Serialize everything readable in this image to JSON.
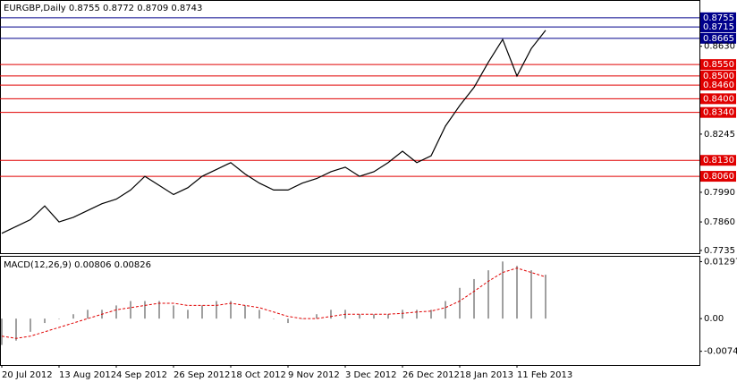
{
  "chart_data": {
    "type": "line",
    "title": "EURGBP,Daily  0.8755 0.8772 0.8709 0.8743",
    "categories": [
      "20 Jul 2012",
      null,
      null,
      null,
      "13 Aug 2012",
      null,
      null,
      null,
      "4 Sep 2012",
      null,
      null,
      null,
      "26 Sep 2012",
      null,
      null,
      null,
      "18 Oct 2012",
      null,
      null,
      null,
      "9 Nov 2012",
      null,
      null,
      null,
      "3 Dec 2012",
      null,
      null,
      null,
      "26 Dec 2012",
      null,
      null,
      null,
      "18 Jan 2013",
      null,
      null,
      null,
      "11 Feb 2013",
      null,
      null
    ],
    "series": [
      {
        "color": "#000000",
        "values": [
          0.781,
          0.784,
          0.787,
          0.793,
          0.786,
          0.788,
          0.791,
          0.794,
          0.796,
          0.8,
          0.806,
          0.802,
          0.798,
          0.801,
          0.806,
          0.809,
          0.812,
          0.807,
          0.803,
          0.8,
          0.8,
          0.803,
          0.805,
          0.808,
          0.81,
          0.806,
          0.808,
          0.812,
          0.817,
          0.812,
          0.815,
          0.828,
          0.837,
          0.845,
          0.856,
          0.866,
          0.85,
          0.862,
          0.87
        ]
      }
    ],
    "ylim": [
      0.7723,
      0.8829
    ],
    "yticks": [
      {
        "value": 0.8755,
        "color": "#00008b"
      },
      {
        "value": 0.8715,
        "color": "#00008b"
      },
      {
        "value": 0.8665,
        "color": "#00008b"
      },
      {
        "value": 0.863,
        "label": "0.8630"
      },
      {
        "value": 0.855,
        "label": "0.8550",
        "color": "#e00000"
      },
      {
        "value": 0.85,
        "label": "0.8500",
        "color": "#e00000"
      },
      {
        "value": 0.846,
        "label": "0.8460",
        "color": "#e00000"
      },
      {
        "value": 0.84,
        "label": "0.8400",
        "color": "#e00000"
      },
      {
        "value": 0.834,
        "label": "0.8340",
        "color": "#e00000"
      },
      0.8245,
      {
        "value": 0.813,
        "label": "0.8130",
        "color": "#e00000"
      },
      {
        "value": 0.806,
        "label": "0.8060",
        "color": "#e00000"
      },
      {
        "value": 0.799,
        "label": "0.7990"
      },
      {
        "value": 0.786,
        "label": "0.7860"
      },
      0.7735
    ],
    "macd": {
      "title": "MACD(12,26,9) 0.00806 0.00826",
      "histogram": {
        "color": "#a0a0a0",
        "values": [
          -0.006,
          -0.005,
          -0.003,
          -0.001,
          0.0,
          0.001,
          0.002,
          0.002,
          0.003,
          0.004,
          0.004,
          0.004,
          0.003,
          0.002,
          0.003,
          0.004,
          0.004,
          0.003,
          0.002,
          0.0,
          -0.001,
          0.0,
          0.001,
          0.002,
          0.002,
          0.001,
          0.001,
          0.001,
          0.002,
          0.002,
          0.002,
          0.004,
          0.007,
          0.009,
          0.011,
          0.013,
          0.012,
          0.011,
          0.01
        ]
      },
      "signal": {
        "color": "#e00000",
        "values": [
          -0.004,
          -0.0045,
          -0.004,
          -0.003,
          -0.002,
          -0.001,
          0.0,
          0.001,
          0.002,
          0.0025,
          0.003,
          0.0035,
          0.0035,
          0.003,
          0.003,
          0.003,
          0.0035,
          0.003,
          0.0025,
          0.0015,
          0.0005,
          0.0,
          0.0,
          0.0005,
          0.001,
          0.001,
          0.001,
          0.001,
          0.0012,
          0.0015,
          0.0017,
          0.0025,
          0.004,
          0.0062,
          0.0085,
          0.0105,
          0.0115,
          0.0105,
          0.0095
        ]
      },
      "ylim": [
        -0.01056,
        0.01408
      ],
      "yticks": [
        0.01297,
        {
          "value": 0,
          "label": "0.00"
        },
        -0.00744
      ]
    }
  }
}
